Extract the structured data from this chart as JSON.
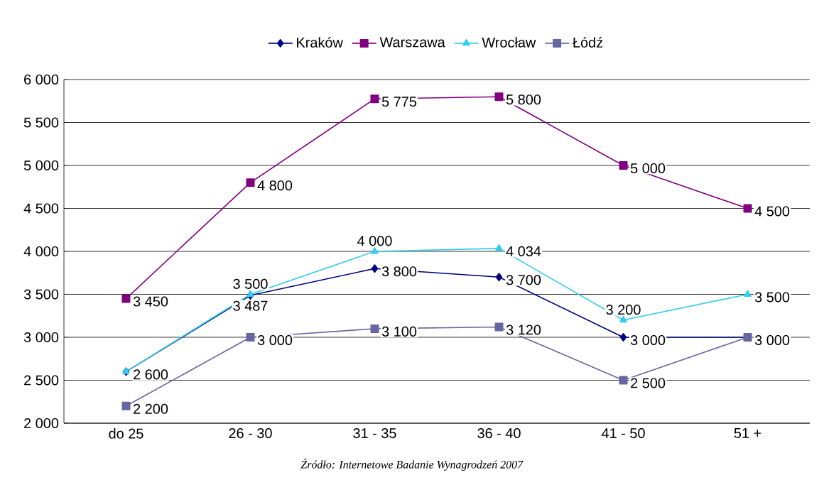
{
  "chart_data": {
    "type": "line",
    "categories": [
      "do 25",
      "26 - 30",
      "31 - 35",
      "36 - 40",
      "41 - 50",
      "51 +"
    ],
    "series": [
      {
        "name": "Kraków",
        "color": "#000080",
        "marker": "diamond",
        "values": [
          2600,
          3487,
          3800,
          3700,
          3000,
          3000
        ],
        "value_labels": [
          "2 600",
          "3 487",
          "3 800",
          "3 700",
          "3 000",
          "3 000"
        ]
      },
      {
        "name": "Warszawa",
        "color": "#800080",
        "marker": "square",
        "values": [
          3450,
          4800,
          5775,
          5800,
          5000,
          4500
        ],
        "value_labels": [
          "3 450",
          "4 800",
          "5 775",
          "5 800",
          "5 000",
          "4 500"
        ]
      },
      {
        "name": "Wrocław",
        "color": "#33ccee",
        "marker": "triangle",
        "values": [
          2600,
          3500,
          4000,
          4034,
          3200,
          3500
        ],
        "value_labels": [
          null,
          "3 500",
          "4 000",
          "4 034",
          "3 200",
          "3 500"
        ]
      },
      {
        "name": "Łódź",
        "color": "#6666a0",
        "marker": "square",
        "values": [
          2200,
          3000,
          3100,
          3120,
          2500,
          3000
        ],
        "value_labels": [
          "2 200",
          "3 000",
          "3 100",
          "3 120",
          "2 500",
          null
        ]
      }
    ],
    "ylim": [
      2000,
      6000
    ],
    "yticks": [
      {
        "value": 2000,
        "label": "2 000"
      },
      {
        "value": 2500,
        "label": "2 500"
      },
      {
        "value": 3000,
        "label": "3 000"
      },
      {
        "value": 3500,
        "label": "3 500"
      },
      {
        "value": 4000,
        "label": "4 000"
      },
      {
        "value": 4500,
        "label": "4 500"
      },
      {
        "value": 5000,
        "label": "5 000"
      },
      {
        "value": 5500,
        "label": "5 500"
      },
      {
        "value": 6000,
        "label": "6 000"
      }
    ],
    "grid": "y",
    "legend": "top",
    "line_style": "solid",
    "annotations": [
      "*Źródło: Internetowe Badanie Wynagrodzeń 2007*"
    ]
  }
}
